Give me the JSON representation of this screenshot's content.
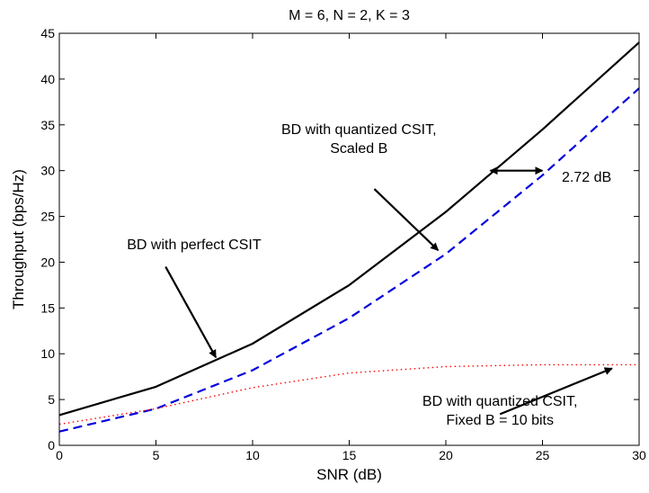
{
  "chart_data": {
    "type": "line",
    "title": "M = 6, N = 2, K = 3",
    "xlabel": "SNR (dB)",
    "ylabel": "Throughput (bps/Hz)",
    "xlim": [
      0,
      30
    ],
    "ylim": [
      0,
      45
    ],
    "xticks": [
      "0",
      "5",
      "10",
      "15",
      "20",
      "25",
      "30"
    ],
    "yticks": [
      "0",
      "5",
      "10",
      "15",
      "20",
      "25",
      "30",
      "35",
      "40",
      "45"
    ],
    "grid": false,
    "legend": "none",
    "series": [
      {
        "style": "solid",
        "color": "#000000",
        "x": [
          0,
          5,
          10,
          15,
          20,
          25,
          30
        ],
        "values": [
          3.3,
          6.4,
          11.1,
          17.5,
          25.5,
          34.5,
          44.0
        ]
      },
      {
        "style": "dashed",
        "color": "#0000dd",
        "x": [
          0,
          5,
          10,
          15,
          20,
          25,
          30
        ],
        "values": [
          1.5,
          4.0,
          8.2,
          13.9,
          20.9,
          29.5,
          39.0
        ]
      },
      {
        "style": "dotted",
        "color": "#ff0000",
        "x": [
          0,
          5,
          10,
          15,
          20,
          25,
          30
        ],
        "values": [
          2.3,
          4.0,
          6.3,
          7.9,
          8.6,
          8.8,
          8.8
        ]
      }
    ],
    "annotations": [
      {
        "lines": [
          "BD with perfect CSIT"
        ],
        "text_x": 3.5,
        "text_y": 21.4,
        "anchor": "start",
        "arrow_from": [
          5.5,
          19.5
        ],
        "arrow_to": [
          8.1,
          9.6
        ]
      },
      {
        "lines": [
          "BD with quantized CSIT,",
          "Scaled B"
        ],
        "text_x": 15.5,
        "text_y": 34.0,
        "anchor": "middle",
        "arrow_from": [
          16.3,
          28.0
        ],
        "arrow_to": [
          19.6,
          21.3
        ]
      },
      {
        "lines": [
          "BD with quantized CSIT,",
          "Fixed B = 10 bits"
        ],
        "text_x": 22.8,
        "text_y": 4.3,
        "anchor": "middle",
        "arrow_from": [
          22.8,
          3.4
        ],
        "arrow_to": [
          28.6,
          8.4
        ]
      },
      {
        "lines": [
          "2.72 dB"
        ],
        "text_x": 26.0,
        "text_y": 28.8,
        "anchor": "start"
      }
    ],
    "gap_arrow": {
      "y": 30.0,
      "x_from": 22.3,
      "x_to": 25.0,
      "label": "2.72 dB"
    }
  }
}
